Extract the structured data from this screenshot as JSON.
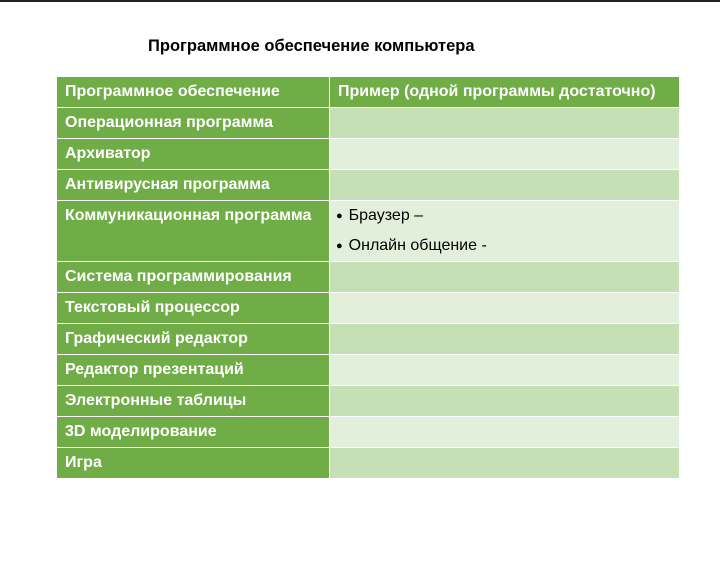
{
  "title": "Программное обеспечение компьютера",
  "header": {
    "col1": "Программное обеспечение",
    "col2": "Пример (одной программы достаточно)"
  },
  "rows": [
    {
      "name": "Операционная программа",
      "examples": []
    },
    {
      "name": "Архиватор",
      "examples": []
    },
    {
      "name": "Антивирусная программа",
      "examples": []
    },
    {
      "name": "Коммуникационная программа",
      "examples": [
        "Браузер –",
        "Онлайн общение -"
      ]
    },
    {
      "name": "Система программирования",
      "examples": []
    },
    {
      "name": "Текстовый процессор",
      "examples": []
    },
    {
      "name": "Графический редактор",
      "examples": []
    },
    {
      "name": "Редактор презентаций",
      "examples": []
    },
    {
      "name": "Электронные таблицы",
      "examples": []
    },
    {
      "name": "3D моделирование",
      "examples": []
    },
    {
      "name": "Игра",
      "examples": []
    }
  ],
  "colors": {
    "header": "#70ad47",
    "band_dark": "#c5e0b4",
    "band_light": "#e2efda"
  }
}
